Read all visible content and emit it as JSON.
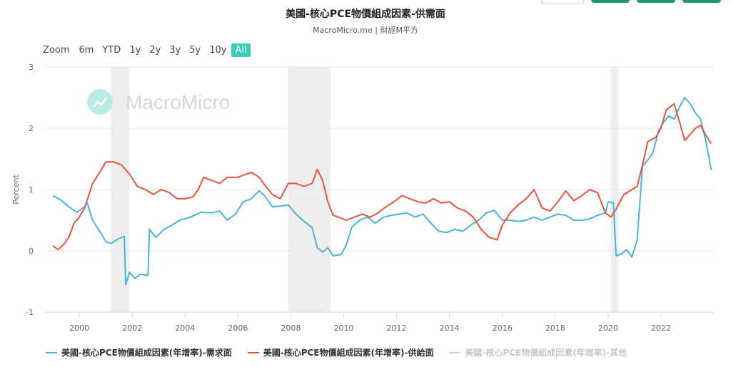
{
  "header": {
    "title": "美國-核心PCE物價組成因素-供需面",
    "subtitle": "MacroMicro.me | 財經M平方"
  },
  "watermark": "MacroMicro",
  "range_selector": {
    "zoom_label": "Zoom",
    "buttons": [
      "6m",
      "YTD",
      "1y",
      "2y",
      "3y",
      "5y",
      "10y",
      "All"
    ],
    "active": "All"
  },
  "chart_data": {
    "type": "line",
    "ylabel": "Percent",
    "ylim": [
      -1,
      3
    ],
    "yticks": [
      3,
      2,
      1,
      0,
      -1
    ],
    "xlim": [
      1998.7,
      2024.0
    ],
    "xticks": [
      2000,
      2002,
      2004,
      2006,
      2008,
      2010,
      2012,
      2014,
      2016,
      2018,
      2020,
      2022
    ],
    "recessions": [
      [
        2001.2,
        2001.9
      ],
      [
        2007.9,
        2009.5
      ],
      [
        2020.1,
        2020.4
      ]
    ],
    "grid": "horizontal",
    "legend_position": "bottom",
    "series": [
      {
        "name": "美國-核心PCE物價組成因素(年增率)-需求面",
        "color": "#4ab3d8",
        "visible": true,
        "points": [
          [
            1999.0,
            0.9
          ],
          [
            1999.3,
            0.83
          ],
          [
            1999.6,
            0.72
          ],
          [
            1999.9,
            0.63
          ],
          [
            2000.2,
            0.72
          ],
          [
            2000.3,
            0.78
          ],
          [
            2000.5,
            0.5
          ],
          [
            2000.8,
            0.3
          ],
          [
            2001.0,
            0.15
          ],
          [
            2001.2,
            0.12
          ],
          [
            2001.5,
            0.2
          ],
          [
            2001.7,
            0.24
          ],
          [
            2001.75,
            -0.55
          ],
          [
            2001.9,
            -0.35
          ],
          [
            2002.1,
            -0.45
          ],
          [
            2002.3,
            -0.38
          ],
          [
            2002.6,
            -0.4
          ],
          [
            2002.65,
            0.35
          ],
          [
            2002.9,
            0.22
          ],
          [
            2003.2,
            0.35
          ],
          [
            2003.5,
            0.42
          ],
          [
            2003.8,
            0.5
          ],
          [
            2004.2,
            0.55
          ],
          [
            2004.6,
            0.63
          ],
          [
            2005.0,
            0.62
          ],
          [
            2005.3,
            0.65
          ],
          [
            2005.6,
            0.5
          ],
          [
            2005.9,
            0.6
          ],
          [
            2006.2,
            0.8
          ],
          [
            2006.5,
            0.85
          ],
          [
            2006.8,
            0.98
          ],
          [
            2007.0,
            0.9
          ],
          [
            2007.3,
            0.72
          ],
          [
            2007.6,
            0.73
          ],
          [
            2007.9,
            0.75
          ],
          [
            2008.2,
            0.6
          ],
          [
            2008.5,
            0.48
          ],
          [
            2008.8,
            0.38
          ],
          [
            2009.0,
            0.05
          ],
          [
            2009.2,
            -0.02
          ],
          [
            2009.4,
            0.05
          ],
          [
            2009.6,
            -0.08
          ],
          [
            2009.9,
            -0.06
          ],
          [
            2010.1,
            0.1
          ],
          [
            2010.3,
            0.38
          ],
          [
            2010.6,
            0.5
          ],
          [
            2010.9,
            0.55
          ],
          [
            2011.2,
            0.45
          ],
          [
            2011.5,
            0.55
          ],
          [
            2011.8,
            0.58
          ],
          [
            2012.1,
            0.6
          ],
          [
            2012.4,
            0.62
          ],
          [
            2012.7,
            0.55
          ],
          [
            2013.0,
            0.6
          ],
          [
            2013.3,
            0.45
          ],
          [
            2013.6,
            0.32
          ],
          [
            2013.9,
            0.3
          ],
          [
            2014.2,
            0.35
          ],
          [
            2014.5,
            0.32
          ],
          [
            2014.8,
            0.42
          ],
          [
            2015.1,
            0.5
          ],
          [
            2015.4,
            0.62
          ],
          [
            2015.7,
            0.66
          ],
          [
            2016.0,
            0.5
          ],
          [
            2016.3,
            0.5
          ],
          [
            2016.6,
            0.48
          ],
          [
            2016.9,
            0.5
          ],
          [
            2017.2,
            0.55
          ],
          [
            2017.5,
            0.5
          ],
          [
            2017.8,
            0.55
          ],
          [
            2018.1,
            0.6
          ],
          [
            2018.4,
            0.58
          ],
          [
            2018.7,
            0.5
          ],
          [
            2019.0,
            0.5
          ],
          [
            2019.3,
            0.52
          ],
          [
            2019.6,
            0.58
          ],
          [
            2019.9,
            0.62
          ],
          [
            2020.0,
            0.8
          ],
          [
            2020.2,
            0.78
          ],
          [
            2020.3,
            -0.08
          ],
          [
            2020.5,
            -0.05
          ],
          [
            2020.7,
            0.02
          ],
          [
            2020.9,
            -0.1
          ],
          [
            2021.1,
            0.18
          ],
          [
            2021.3,
            1.38
          ],
          [
            2021.5,
            1.48
          ],
          [
            2021.7,
            1.6
          ],
          [
            2021.9,
            1.95
          ],
          [
            2022.1,
            2.1
          ],
          [
            2022.3,
            2.2
          ],
          [
            2022.5,
            2.15
          ],
          [
            2022.7,
            2.35
          ],
          [
            2022.9,
            2.5
          ],
          [
            2023.1,
            2.4
          ],
          [
            2023.3,
            2.25
          ],
          [
            2023.5,
            2.15
          ],
          [
            2023.7,
            1.78
          ],
          [
            2023.9,
            1.32
          ]
        ]
      },
      {
        "name": "美國-核心PCE物價組成因素(年增率)-供給面",
        "color": "#e8553c",
        "visible": true,
        "points": [
          [
            1999.0,
            0.08
          ],
          [
            1999.2,
            0.02
          ],
          [
            1999.4,
            0.1
          ],
          [
            1999.6,
            0.22
          ],
          [
            1999.8,
            0.45
          ],
          [
            2000.0,
            0.55
          ],
          [
            2000.2,
            0.7
          ],
          [
            2000.5,
            1.1
          ],
          [
            2000.8,
            1.3
          ],
          [
            2001.0,
            1.45
          ],
          [
            2001.3,
            1.45
          ],
          [
            2001.6,
            1.4
          ],
          [
            2001.9,
            1.25
          ],
          [
            2002.2,
            1.05
          ],
          [
            2002.5,
            1.0
          ],
          [
            2002.8,
            0.92
          ],
          [
            2003.1,
            1.0
          ],
          [
            2003.4,
            0.95
          ],
          [
            2003.7,
            0.85
          ],
          [
            2004.0,
            0.85
          ],
          [
            2004.3,
            0.88
          ],
          [
            2004.5,
            1.0
          ],
          [
            2004.7,
            1.2
          ],
          [
            2005.0,
            1.15
          ],
          [
            2005.3,
            1.1
          ],
          [
            2005.6,
            1.2
          ],
          [
            2006.0,
            1.2
          ],
          [
            2006.3,
            1.25
          ],
          [
            2006.5,
            1.28
          ],
          [
            2006.8,
            1.2
          ],
          [
            2007.0,
            1.08
          ],
          [
            2007.3,
            0.92
          ],
          [
            2007.6,
            0.85
          ],
          [
            2007.9,
            1.1
          ],
          [
            2008.2,
            1.1
          ],
          [
            2008.5,
            1.05
          ],
          [
            2008.8,
            1.1
          ],
          [
            2009.0,
            1.33
          ],
          [
            2009.2,
            1.15
          ],
          [
            2009.4,
            0.8
          ],
          [
            2009.6,
            0.58
          ],
          [
            2009.8,
            0.55
          ],
          [
            2010.1,
            0.5
          ],
          [
            2010.4,
            0.55
          ],
          [
            2010.7,
            0.6
          ],
          [
            2011.0,
            0.55
          ],
          [
            2011.3,
            0.62
          ],
          [
            2011.6,
            0.72
          ],
          [
            2011.9,
            0.8
          ],
          [
            2012.2,
            0.9
          ],
          [
            2012.5,
            0.85
          ],
          [
            2012.8,
            0.8
          ],
          [
            2013.1,
            0.78
          ],
          [
            2013.4,
            0.85
          ],
          [
            2013.7,
            0.78
          ],
          [
            2014.0,
            0.8
          ],
          [
            2014.3,
            0.7
          ],
          [
            2014.6,
            0.65
          ],
          [
            2014.9,
            0.55
          ],
          [
            2015.2,
            0.35
          ],
          [
            2015.5,
            0.22
          ],
          [
            2015.8,
            0.18
          ],
          [
            2016.0,
            0.42
          ],
          [
            2016.3,
            0.62
          ],
          [
            2016.6,
            0.75
          ],
          [
            2016.9,
            0.85
          ],
          [
            2017.2,
            1.0
          ],
          [
            2017.5,
            0.7
          ],
          [
            2017.8,
            0.65
          ],
          [
            2018.1,
            0.8
          ],
          [
            2018.4,
            0.98
          ],
          [
            2018.7,
            0.82
          ],
          [
            2019.0,
            0.9
          ],
          [
            2019.3,
            1.0
          ],
          [
            2019.6,
            0.95
          ],
          [
            2019.9,
            0.62
          ],
          [
            2020.1,
            0.55
          ],
          [
            2020.3,
            0.68
          ],
          [
            2020.6,
            0.92
          ],
          [
            2020.9,
            1.0
          ],
          [
            2021.1,
            1.05
          ],
          [
            2021.3,
            1.4
          ],
          [
            2021.5,
            1.78
          ],
          [
            2021.8,
            1.85
          ],
          [
            2022.0,
            2.0
          ],
          [
            2022.2,
            2.3
          ],
          [
            2022.5,
            2.4
          ],
          [
            2022.7,
            2.1
          ],
          [
            2022.9,
            1.8
          ],
          [
            2023.1,
            1.9
          ],
          [
            2023.3,
            2.0
          ],
          [
            2023.5,
            2.05
          ],
          [
            2023.7,
            1.88
          ],
          [
            2023.9,
            1.75
          ]
        ]
      },
      {
        "name": "美國-核心PCE物價組成因素(年增率)-其他",
        "color": "#cccccc",
        "visible": false,
        "points": []
      }
    ]
  }
}
